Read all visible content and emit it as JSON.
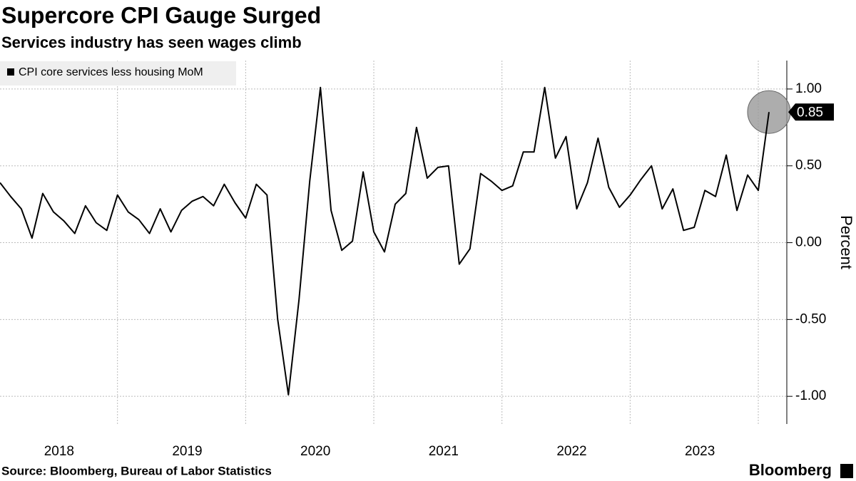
{
  "chart_data": {
    "type": "line",
    "title": "Supercore CPI Gauge Surged",
    "subtitle": "Services industry has seen wages climb",
    "y_label": "Percent",
    "source": "Source: Bloomberg, Bureau of Labor Statistics",
    "brand": "Bloomberg",
    "categories": [
      null,
      null,
      null,
      null,
      null,
      null,
      "2018",
      null,
      null,
      null,
      null,
      null,
      null,
      null,
      null,
      null,
      null,
      null,
      "2019",
      null,
      null,
      null,
      null,
      null,
      null,
      null,
      null,
      null,
      null,
      null,
      "2020",
      null,
      null,
      null,
      null,
      null,
      null,
      null,
      null,
      null,
      null,
      null,
      "2021",
      null,
      null,
      null,
      null,
      null,
      null,
      null,
      null,
      null,
      null,
      null,
      "2022",
      null,
      null,
      null,
      null,
      null,
      null,
      null,
      null,
      null,
      null,
      null,
      "2023",
      null,
      null,
      null,
      null,
      null,
      null
    ],
    "series": [
      {
        "name": "CPI core services less housing MoM",
        "color": "#000000",
        "values": [
          0.39,
          0.3,
          0.22,
          0.03,
          0.32,
          0.2,
          0.14,
          0.06,
          0.24,
          0.13,
          0.08,
          0.31,
          0.2,
          0.15,
          0.06,
          0.22,
          0.07,
          0.21,
          0.27,
          0.3,
          0.24,
          0.38,
          0.26,
          0.16,
          0.38,
          0.31,
          -0.5,
          -0.99,
          -0.37,
          0.4,
          1.01,
          0.21,
          -0.05,
          0.01,
          0.46,
          0.07,
          -0.06,
          0.25,
          0.32,
          0.75,
          0.42,
          0.49,
          0.5,
          -0.14,
          -0.04,
          0.45,
          0.4,
          0.34,
          0.37,
          0.59,
          0.59,
          1.01,
          0.55,
          0.69,
          0.22,
          0.39,
          0.68,
          0.36,
          0.23,
          0.31,
          0.41,
          0.5,
          0.22,
          0.35,
          0.08,
          0.1,
          0.34,
          0.3,
          0.57,
          0.21,
          0.44,
          0.34,
          0.85
        ]
      }
    ],
    "ylim": [
      -1.18,
      1.185
    ],
    "yticks": [
      {
        "value": -1,
        "label": "-1.00"
      },
      {
        "value": -0.5,
        "label": "-0.50"
      },
      {
        "value": 0,
        "label": "0.00"
      },
      {
        "value": 0.5,
        "label": "0.50"
      },
      {
        "value": 1,
        "label": "1.00"
      }
    ],
    "grid": true,
    "legend": "upper left"
  }
}
